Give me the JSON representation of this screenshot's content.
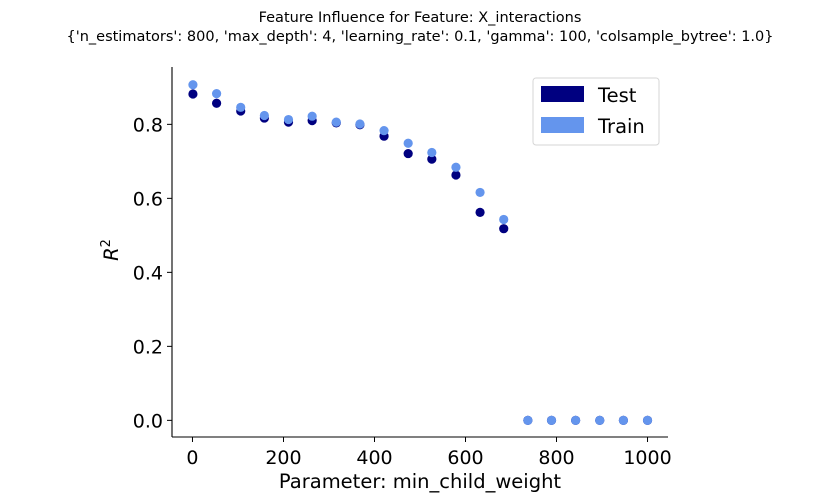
{
  "colors": {
    "test": "#000080",
    "train": "#6495ed"
  },
  "chart_data": {
    "type": "scatter",
    "title": "Feature Influence for Feature: X_interactions",
    "subtitle": "{'n_estimators': 800, 'max_depth': 4, 'learning_rate': 0.1, 'gamma': 100, 'colsample_bytree': 1.0}",
    "xlabel": "Parameter: min_child_weight",
    "ylabel": "R",
    "ylabel_superscript": "2",
    "xlim": [
      -45,
      1045
    ],
    "ylim": [
      -0.045,
      0.955
    ],
    "xticks": [
      0,
      200,
      400,
      600,
      800,
      1000
    ],
    "yticks": [
      0.0,
      0.2,
      0.4,
      0.6,
      0.8
    ],
    "xtick_labels": [
      "0",
      "200",
      "400",
      "600",
      "800",
      "1000"
    ],
    "ytick_labels": [
      "0.0",
      "0.2",
      "0.4",
      "0.6",
      "0.8"
    ],
    "grid": false,
    "legend_position": "top-right",
    "x": [
      1,
      53,
      106,
      158,
      211,
      263,
      316,
      368,
      421,
      474,
      526,
      579,
      632,
      684,
      737,
      789,
      842,
      895,
      947,
      1000
    ],
    "series": [
      {
        "name": "Test",
        "color": "#000080",
        "values": [
          0.882,
          0.857,
          0.836,
          0.817,
          0.806,
          0.81,
          0.804,
          0.799,
          0.768,
          0.721,
          0.706,
          0.663,
          0.562,
          0.518,
          0.0,
          0.0,
          0.0,
          0.0,
          0.0,
          0.0
        ]
      },
      {
        "name": "Train",
        "color": "#6495ed",
        "values": [
          0.907,
          0.883,
          0.846,
          0.824,
          0.813,
          0.822,
          0.806,
          0.801,
          0.783,
          0.749,
          0.724,
          0.684,
          0.616,
          0.543,
          0.0,
          0.0,
          0.0,
          0.0,
          0.0,
          0.0
        ]
      }
    ]
  }
}
